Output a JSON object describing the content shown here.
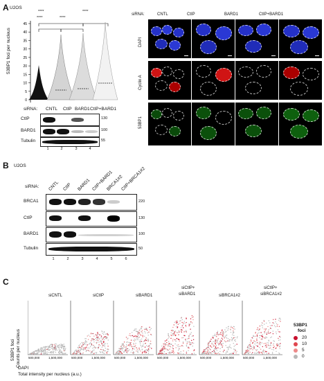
{
  "panelA": {
    "letter": "A",
    "cell_line": "U2OS",
    "y_label": "53BP1 foci per nucleus",
    "y_ticks": [
      "0",
      "5",
      "10",
      "15",
      "20",
      "25",
      "30",
      "35",
      "40",
      "45"
    ],
    "significance": [
      "****",
      "****",
      "****",
      "****"
    ],
    "sirna_label": "siRNA:",
    "conditions": [
      "CNTL",
      "CtIP",
      "BARD1",
      "CtIP+BARD1"
    ],
    "blot_rows": [
      {
        "label": "CtIP",
        "mw": "130"
      },
      {
        "label": "BARD1",
        "mw": "100"
      },
      {
        "label": "Tubulin",
        "mw": "55"
      }
    ],
    "lane_numbers": [
      "1",
      "2",
      "3",
      "4"
    ],
    "micro_rows": [
      "DAPI",
      "Cyclin A",
      "53BP1"
    ],
    "micro_columns": [
      "CNTL",
      "CtIP",
      "BARD1",
      "CtIP+BARD1"
    ]
  },
  "panelB": {
    "letter": "B",
    "cell_line": "U2OS",
    "sirna_label": "siRNA:",
    "lanes": [
      "CNTL",
      "CtIP",
      "BARD1",
      "CtIP+BARD1",
      "BRCA1#2",
      "CtIP+BRCA1#2"
    ],
    "blot_rows": [
      {
        "label": "BRCA1",
        "mw": "220"
      },
      {
        "label": "CtIP",
        "mw": "130"
      },
      {
        "label": "BARD1",
        "mw": "100"
      },
      {
        "label": "Tubulin",
        "mw": "50"
      }
    ],
    "lane_numbers": [
      "1",
      "2",
      "3",
      "4",
      "5",
      "6"
    ]
  },
  "panelC": {
    "letter": "C",
    "y_label_line1": "53BP1 foci",
    "y_label_line2": "Counts per nucleus",
    "x_label_line1": "DAPI",
    "x_label_line2": "Total intensity per nucleus (a.u.)",
    "x_ticks": [
      "500,000",
      "1,500,000"
    ],
    "conditions": [
      "siCNTL",
      "siCtIP",
      "siBARD1",
      "siCtIP+\nsiBARD1",
      "siBRCA1#2",
      "siCtIP+\nsiBRCA1#2"
    ],
    "condition_line1": [
      "siCNTL",
      "siCtIP",
      "siBARD1",
      "siCtIP+",
      "siBRCA1#2",
      "siCtIP+"
    ],
    "condition_line2": [
      "",
      "",
      "",
      "siBARD1",
      "",
      "siBRCA1#2"
    ],
    "legend_title_1": "53BP1",
    "legend_title_2": "foci",
    "legend_items": [
      {
        "label": "20",
        "color": "#c8102e"
      },
      {
        "label": "10",
        "color": "#e0464f"
      },
      {
        "label": "5",
        "color": "#ee8a8a"
      },
      {
        "label": "0",
        "color": "#b7b7b7"
      }
    ]
  }
}
